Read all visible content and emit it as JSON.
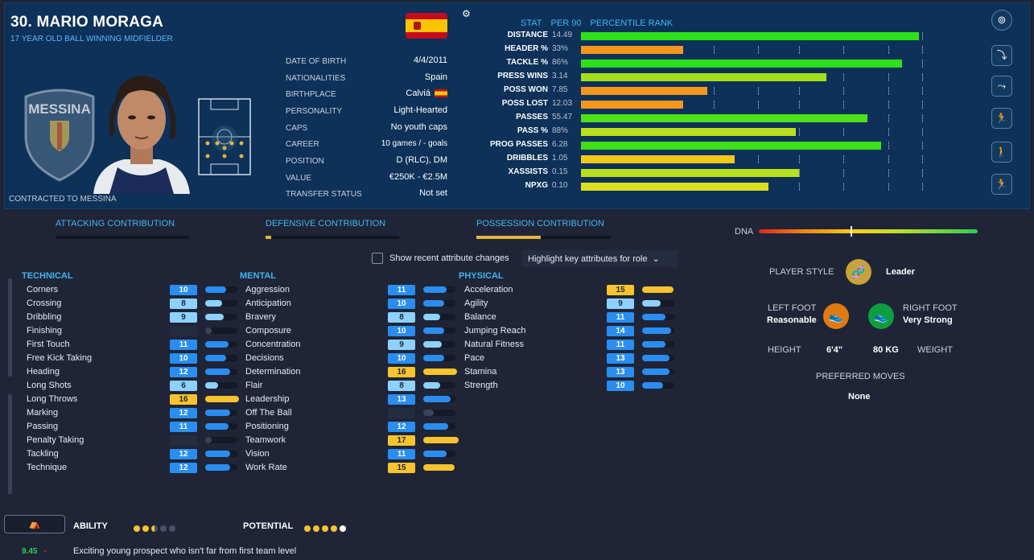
{
  "player": {
    "name": "30. MARIO MORAGA",
    "role": "17 YEAR OLD BALL WINNING MIDFIELDER",
    "contract": "CONTRACTED TO MESSINA",
    "club_badge_text": "MESSINA"
  },
  "info": [
    {
      "label": "DATE OF BIRTH",
      "value": "4/4/2011"
    },
    {
      "label": "NATIONALITIES",
      "value": "Spain"
    },
    {
      "label": "BIRTHPLACE",
      "value": "Calviá"
    },
    {
      "label": "PERSONALITY",
      "value": "Light-Hearted"
    },
    {
      "label": "CAPS",
      "value": "No youth caps"
    },
    {
      "label": "CAREER",
      "value": "10 games /    -  goals"
    },
    {
      "label": "POSITION",
      "value": "D (RLC), DM"
    },
    {
      "label": "VALUE",
      "value": "€250K - €2.5M"
    },
    {
      "label": "TRANSFER STATUS",
      "value": "Not set"
    }
  ],
  "stats": {
    "headers": [
      "STAT",
      "PER 90",
      "PERCENTILE RANK"
    ],
    "rows": [
      {
        "name": "DISTANCE",
        "value": "14.49",
        "pct": 0.99,
        "color": "#2ee01a"
      },
      {
        "name": "HEADER %",
        "value": "33%",
        "pct": 0.3,
        "color": "#f5961d"
      },
      {
        "name": "TACKLE %",
        "value": "86%",
        "pct": 0.94,
        "color": "#2ee01a"
      },
      {
        "name": "PRESS WINS",
        "value": "3.14",
        "pct": 0.72,
        "color": "#a2e01c"
      },
      {
        "name": "POSS WON",
        "value": "7.85",
        "pct": 0.37,
        "color": "#f5961d"
      },
      {
        "name": "POSS LOST",
        "value": "12.03",
        "pct": 0.3,
        "color": "#f5961d"
      },
      {
        "name": "PASSES",
        "value": "55.47",
        "pct": 0.84,
        "color": "#4fe01a"
      },
      {
        "name": "PASS %",
        "value": "88%",
        "pct": 0.63,
        "color": "#b8e01c"
      },
      {
        "name": "PROG PASSES",
        "value": "6.28",
        "pct": 0.88,
        "color": "#3fe01a"
      },
      {
        "name": "DRIBBLES",
        "value": "1.05",
        "pct": 0.45,
        "color": "#f2c81a"
      },
      {
        "name": "XASSISTS",
        "value": "0.15",
        "pct": 0.64,
        "color": "#b8e01c"
      },
      {
        "name": "NPXG",
        "value": "0.10",
        "pct": 0.55,
        "color": "#dce01c"
      }
    ]
  },
  "contributions": [
    {
      "label": "ATTACKING CONTRIBUTION",
      "value": 0.0
    },
    {
      "label": "DEFENSIVE CONTRIBUTION",
      "value": 0.04
    },
    {
      "label": "POSSESSION CONTRIBUTION",
      "value": 0.48
    }
  ],
  "dna": {
    "label": "DNA",
    "value": 0.42
  },
  "controls": {
    "show_changes": "Show recent attribute changes",
    "highlight": "Highlight key attributes for role"
  },
  "technical": {
    "title": "TECHNICAL",
    "items": [
      {
        "name": "Corners",
        "value": "10"
      },
      {
        "name": "Crossing",
        "value": "8"
      },
      {
        "name": "Dribbling",
        "value": "9"
      },
      {
        "name": "Finishing",
        "value": "3"
      },
      {
        "name": "First Touch",
        "value": "11"
      },
      {
        "name": "Free Kick Taking",
        "value": "10"
      },
      {
        "name": "Heading",
        "value": "12"
      },
      {
        "name": "Long Shots",
        "value": "6"
      },
      {
        "name": "Long Throws",
        "value": "16"
      },
      {
        "name": "Marking",
        "value": "12"
      },
      {
        "name": "Passing",
        "value": "11"
      },
      {
        "name": "Penalty Taking",
        "value": "3"
      },
      {
        "name": "Tackling",
        "value": "12"
      },
      {
        "name": "Technique",
        "value": "12"
      }
    ]
  },
  "mental": {
    "title": "MENTAL",
    "items": [
      {
        "name": "Aggression",
        "value": "11"
      },
      {
        "name": "Anticipation",
        "value": "10"
      },
      {
        "name": "Bravery",
        "value": "8"
      },
      {
        "name": "Composure",
        "value": "10"
      },
      {
        "name": "Concentration",
        "value": "9"
      },
      {
        "name": "Decisions",
        "value": "10"
      },
      {
        "name": "Determination",
        "value": "16"
      },
      {
        "name": "Flair",
        "value": "8"
      },
      {
        "name": "Leadership",
        "value": "13"
      },
      {
        "name": "Off The Ball",
        "value": "5"
      },
      {
        "name": "Positioning",
        "value": "12"
      },
      {
        "name": "Teamwork",
        "value": "17"
      },
      {
        "name": "Vision",
        "value": "11"
      },
      {
        "name": "Work Rate",
        "value": "15"
      }
    ]
  },
  "physical": {
    "title": "PHYSICAL",
    "items": [
      {
        "name": "Acceleration",
        "value": "15"
      },
      {
        "name": "Agility",
        "value": "9"
      },
      {
        "name": "Balance",
        "value": "11"
      },
      {
        "name": "Jumping Reach",
        "value": "14"
      },
      {
        "name": "Natural Fitness",
        "value": "11"
      },
      {
        "name": "Pace",
        "value": "13"
      },
      {
        "name": "Stamina",
        "value": "13"
      },
      {
        "name": "Strength",
        "value": "10"
      }
    ]
  },
  "profile": {
    "player_style_label": "PLAYER STYLE",
    "player_style": "Leader",
    "left_foot_label": "LEFT FOOT",
    "left_foot": "Reasonable",
    "right_foot_label": "RIGHT FOOT",
    "right_foot": "Very Strong",
    "height_label": "HEIGHT",
    "height": "6'4\"",
    "weight": "80 KG",
    "weight_label": "WEIGHT",
    "preferred_moves_label": "PREFERRED MOVES",
    "preferred_moves": "None"
  },
  "footer": {
    "ability_label": "ABILITY",
    "ability_stars": 2.5,
    "potential_label": "POTENTIAL",
    "potential_stars": 5,
    "rating": "9.45",
    "prospect": "Exciting young prospect who isn't far from first team level"
  },
  "colors": {
    "low": "#7b8191",
    "light": "#8dd1ff",
    "mid": "#2a8df0",
    "gold": "#f7c32e"
  },
  "icons": [
    "gear-icon",
    "club-badge",
    "pitch-position-map",
    "dna-icon",
    "boot-icon"
  ]
}
